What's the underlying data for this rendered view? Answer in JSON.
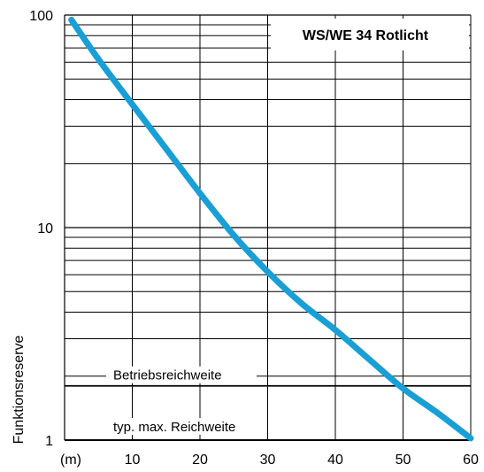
{
  "chart_data": {
    "type": "line",
    "title": "WS/WE 34 Rotlicht",
    "xlabel": "(m)",
    "ylabel": "Funktionsreserve",
    "x_unit_label": "(m)",
    "y_scale": "log",
    "xlim": [
      0,
      60
    ],
    "ylim": [
      1,
      100
    ],
    "x_ticks": [
      "10",
      "20",
      "30",
      "40",
      "50",
      "60"
    ],
    "y_ticks": [
      "1",
      "10",
      "100"
    ],
    "grid": true,
    "line_color": "#1a9fd4",
    "series": [
      {
        "x": [
          1,
          5,
          10,
          15,
          20,
          25,
          30,
          35,
          40,
          45,
          50,
          55,
          60
        ],
        "y": [
          95,
          62,
          38,
          23.5,
          14.5,
          9.2,
          6.2,
          4.4,
          3.3,
          2.4,
          1.75,
          1.35,
          1.02
        ]
      }
    ],
    "reference_lines": [
      {
        "y": 1.8,
        "label": "Betriebsreichweite"
      },
      {
        "y": 1,
        "label": "typ. max. Reichweite"
      }
    ]
  }
}
